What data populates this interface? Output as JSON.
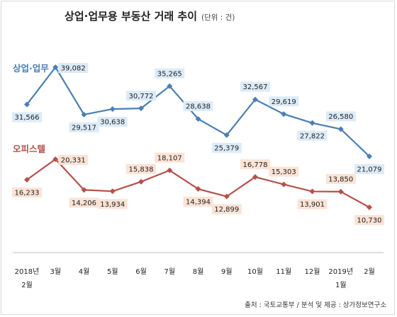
{
  "chart_data": {
    "type": "line",
    "title": "상업·업무용 부동산 거래 추이",
    "subtitle": "(단위 : 건)",
    "x": [
      "2018년 2월",
      "3월",
      "4월",
      "5월",
      "6월",
      "7월",
      "8월",
      "9월",
      "10월",
      "11월",
      "12월",
      "2019년 1월",
      "2월"
    ],
    "x_tick_lines": [
      [
        "2018년",
        "2월"
      ],
      [
        "3월"
      ],
      [
        "4월"
      ],
      [
        "5월"
      ],
      [
        "6월"
      ],
      [
        "7월"
      ],
      [
        "8월"
      ],
      [
        "9월"
      ],
      [
        "10월"
      ],
      [
        "11월"
      ],
      [
        "12월"
      ],
      [
        "2019년",
        "1월"
      ],
      [
        "2월"
      ]
    ],
    "series": [
      {
        "name": "상업·업무",
        "color": "#4a7fb4",
        "label_bg": "#dcebf7",
        "values": [
          31566,
          39082,
          29517,
          30638,
          30772,
          35265,
          28638,
          25379,
          32567,
          29619,
          27822,
          26580,
          21079
        ],
        "labels": [
          "31,566",
          "39,082",
          "29,517",
          "30,638",
          "30,772",
          "35,265",
          "28,638",
          "25,379",
          "32,567",
          "29,619",
          "27,822",
          "26,580",
          "21,079"
        ],
        "label_pos": [
          "below",
          "right",
          "below",
          "below",
          "above",
          "above",
          "above",
          "below",
          "above",
          "above",
          "below",
          "above",
          "below"
        ]
      },
      {
        "name": "오피스텔",
        "color": "#b5504a",
        "label_bg": "#fbe3d6",
        "values": [
          16233,
          20331,
          14206,
          13934,
          15838,
          18107,
          14394,
          12899,
          16778,
          15303,
          13901,
          13850,
          10730
        ],
        "labels": [
          "16,233",
          "20,331",
          "14,206",
          "13,934",
          "15,838",
          "18,107",
          "14,394",
          "12,899",
          "16,778",
          "15,303",
          "13,901",
          "13,850",
          "10,730"
        ],
        "label_pos": [
          "below",
          "right",
          "below",
          "below",
          "above",
          "above",
          "below",
          "below",
          "above",
          "above",
          "below",
          "above",
          "below"
        ]
      }
    ],
    "grid": false
  },
  "source": "출처 : 국토교통부 / 분석 및 제공 : 상가정보연구소"
}
